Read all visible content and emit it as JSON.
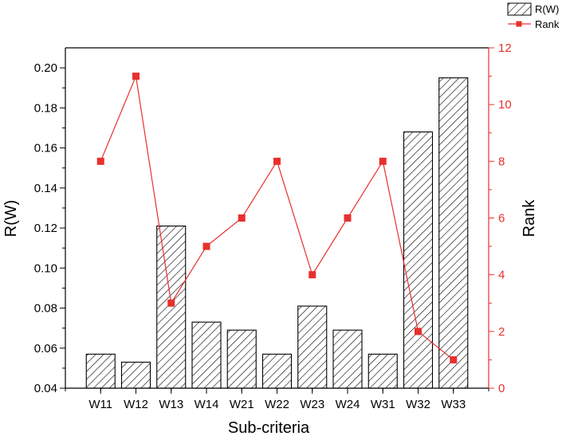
{
  "chart_data": {
    "type": "bar",
    "categories": [
      "W11",
      "W12",
      "W13",
      "W14",
      "W21",
      "W22",
      "W23",
      "W24",
      "W31",
      "W32",
      "W33"
    ],
    "series": [
      {
        "name": "R(W)",
        "type": "bar",
        "axis": "left",
        "values": [
          0.057,
          0.053,
          0.121,
          0.073,
          0.069,
          0.057,
          0.081,
          0.069,
          0.057,
          0.168,
          0.195
        ]
      },
      {
        "name": "Rank",
        "type": "line",
        "axis": "right",
        "values": [
          8,
          11,
          3,
          5,
          6,
          8,
          4,
          6,
          8,
          2,
          1
        ]
      }
    ],
    "xlabel": "Sub-criteria",
    "ylabel": "R(W)",
    "y2label": "Rank",
    "ylim": [
      0.04,
      0.21
    ],
    "y2lim": [
      0,
      12
    ],
    "yticks": [
      "0.04",
      "0.06",
      "0.08",
      "0.10",
      "0.12",
      "0.14",
      "0.16",
      "0.18",
      "0.20"
    ],
    "y2ticks": [
      "0",
      "2",
      "4",
      "6",
      "8",
      "10",
      "12"
    ],
    "legend_position": "top-right",
    "grid": false,
    "colors": {
      "bar_fill": "#ffffff",
      "bar_stroke": "#000000",
      "bar_hatch": "#000000",
      "line": "#e8302e",
      "right_axis": "#e8302e",
      "left_axis": "#000000"
    }
  }
}
